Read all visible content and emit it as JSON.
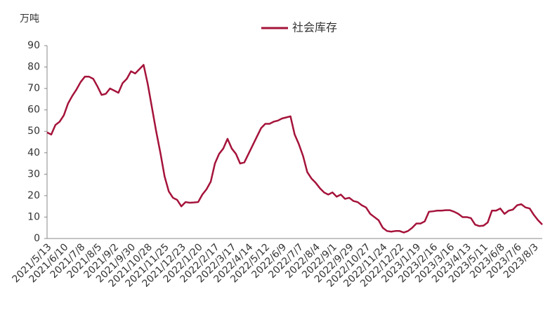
{
  "chart_data": {
    "type": "line",
    "y_label": "万吨",
    "categories": [
      "2021/5/13",
      null,
      null,
      null,
      "2021/6/10",
      null,
      null,
      null,
      "2021/7/8",
      null,
      null,
      null,
      "2021/8/5",
      null,
      null,
      null,
      "2021/9/2",
      null,
      null,
      null,
      "2021/9/30",
      null,
      null,
      null,
      "2021/10/28",
      null,
      null,
      null,
      "2021/11/25",
      null,
      null,
      null,
      "2021/12/23",
      null,
      null,
      null,
      "2022/1/20",
      null,
      null,
      null,
      "2022/2/17",
      null,
      null,
      null,
      "2022/3/17",
      null,
      null,
      null,
      "2022/4/14",
      null,
      null,
      null,
      "2022/5/12",
      null,
      null,
      null,
      "2022/6/9",
      null,
      null,
      null,
      "2022/7/7",
      null,
      null,
      null,
      "2022/8/4",
      null,
      null,
      null,
      "2022/9/1",
      null,
      null,
      null,
      "2022/9/29",
      null,
      null,
      null,
      "2022/10/27",
      null,
      null,
      null,
      "2022/11/24",
      null,
      null,
      null,
      "2022/12/22",
      null,
      null,
      null,
      "2023/1/19",
      null,
      null,
      null,
      "2023/2/16",
      null,
      null,
      null,
      "2023/3/16",
      null,
      null,
      null,
      "2023/4/13",
      null,
      null,
      null,
      "2023/5/11",
      null,
      null,
      null,
      "2023/6/8",
      null,
      null,
      null,
      "2023/7/6",
      null,
      null,
      null,
      "2023/8/3",
      null,
      null
    ],
    "series": [
      {
        "name": "社会库存",
        "color": "#a5133a",
        "values": [
          49.5,
          48.5,
          53,
          54.5,
          57.5,
          63,
          66.5,
          69.5,
          73,
          75.5,
          75.5,
          74.5,
          71,
          67,
          67.5,
          70,
          69,
          68,
          72.5,
          74.5,
          78,
          77,
          79,
          81,
          72,
          61,
          50,
          40,
          29,
          22,
          19,
          18,
          15,
          17,
          16.7,
          16.8,
          17,
          20.5,
          23,
          26.5,
          35,
          39.5,
          42,
          46.5,
          42,
          39.5,
          35,
          35.5,
          39.5,
          43.5,
          47.5,
          51.5,
          53.5,
          53.5,
          54.5,
          55,
          56,
          56.5,
          57,
          48.5,
          44,
          38.5,
          31,
          28,
          26,
          23.5,
          21.5,
          20.5,
          21.5,
          19.5,
          20.5,
          18.5,
          19,
          17.5,
          17,
          15.5,
          14.5,
          11.5,
          10,
          8.5,
          5,
          3.5,
          3.2,
          3.5,
          3.5,
          2.8,
          3.5,
          5,
          7,
          7,
          8,
          12.5,
          12.7,
          13,
          13,
          13.2,
          13.2,
          12.5,
          11.5,
          10,
          10,
          9.5,
          6.5,
          5.8,
          6,
          7.5,
          13,
          13,
          14,
          11.5,
          13,
          13.5,
          15.5,
          16,
          14.5,
          14,
          11,
          8.5,
          6.5
        ]
      }
    ],
    "ylim": [
      0,
      90
    ],
    "yticks": [
      0,
      10,
      20,
      30,
      40,
      50,
      60,
      70,
      80,
      90
    ],
    "grid": false
  }
}
